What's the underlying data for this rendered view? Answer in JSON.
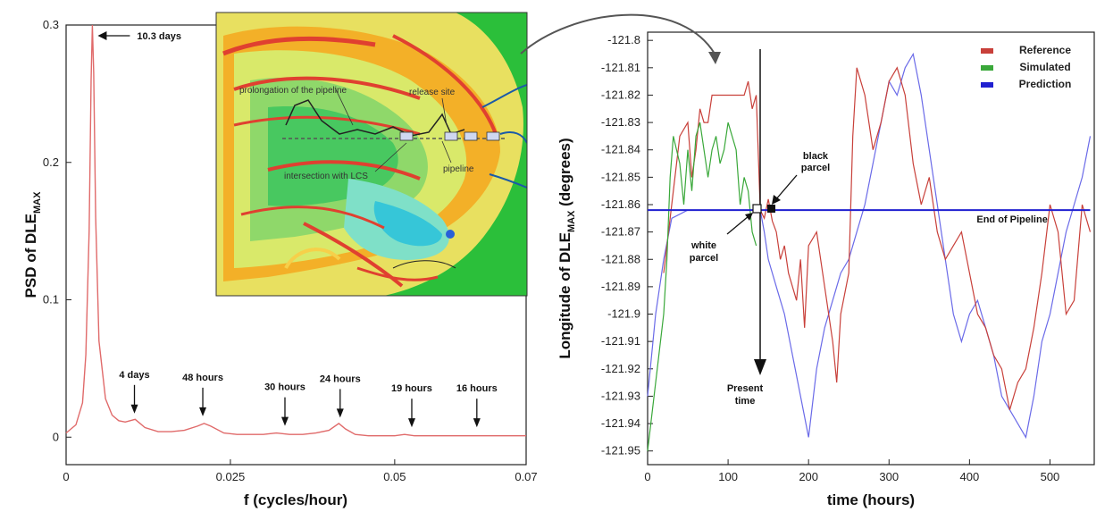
{
  "chart_data": [
    {
      "type": "line",
      "xlabel": "f (cycles/hour)",
      "ylabel_main": "PSD of DLE",
      "ylabel_sub": "MAX",
      "xlim": [
        0,
        0.07
      ],
      "ylim": [
        -0.02,
        0.3
      ],
      "xticks": [
        0,
        0.025,
        0.05,
        0.07
      ],
      "xtick_labels": [
        "0",
        "0.025",
        "0.05",
        "0.07"
      ],
      "yticks": [
        0,
        0.1,
        0.2,
        0.3
      ],
      "ytick_labels": [
        "0",
        "0.1",
        "0.2",
        "0.3"
      ],
      "series": [
        {
          "color": "#e06a6a",
          "x": [
            0,
            0.0015,
            0.0025,
            0.003,
            0.0035,
            0.0038,
            0.004,
            0.0042,
            0.0045,
            0.005,
            0.006,
            0.007,
            0.008,
            0.009,
            0.0105,
            0.012,
            0.014,
            0.016,
            0.018,
            0.02,
            0.021,
            0.022,
            0.024,
            0.026,
            0.028,
            0.03,
            0.032,
            0.034,
            0.036,
            0.038,
            0.04,
            0.0415,
            0.0425,
            0.044,
            0.046,
            0.048,
            0.05,
            0.0515,
            0.053,
            0.055,
            0.058,
            0.062,
            0.066,
            0.07
          ],
          "y": [
            0.003,
            0.009,
            0.025,
            0.06,
            0.15,
            0.26,
            0.3,
            0.265,
            0.16,
            0.07,
            0.028,
            0.016,
            0.012,
            0.011,
            0.013,
            0.007,
            0.004,
            0.004,
            0.005,
            0.008,
            0.01,
            0.008,
            0.003,
            0.002,
            0.002,
            0.002,
            0.003,
            0.002,
            0.002,
            0.003,
            0.005,
            0.01,
            0.006,
            0.002,
            0.001,
            0.001,
            0.001,
            0.002,
            0.001,
            0.001,
            0.001,
            0.001,
            0.001,
            0.001
          ]
        }
      ],
      "annotations": [
        {
          "text": "10.3 days",
          "x": 0.004,
          "y": 0.3
        },
        {
          "text": "4 days",
          "x": 0.0104,
          "y": 0.012
        },
        {
          "text": "48 hours",
          "x": 0.0208,
          "y": 0.01
        },
        {
          "text": "30 hours",
          "x": 0.0333,
          "y": 0.003
        },
        {
          "text": "24 hours",
          "x": 0.0417,
          "y": 0.009
        },
        {
          "text": "19 hours",
          "x": 0.0526,
          "y": 0.002
        },
        {
          "text": "16 hours",
          "x": 0.0625,
          "y": 0.002
        }
      ]
    },
    {
      "type": "line",
      "xlabel": "time (hours)",
      "ylabel_main": "Longitude of DLE",
      "ylabel_sub": "MAX",
      "ylabel_unit": "(degrees)",
      "xlim": [
        0,
        555
      ],
      "ylim": [
        -121.955,
        -121.797
      ],
      "xticks": [
        0,
        100,
        200,
        300,
        400,
        500
      ],
      "xtick_labels": [
        "0",
        "100",
        "200",
        "300",
        "400",
        "500"
      ],
      "yticks": [
        -121.8,
        -121.81,
        -121.82,
        -121.83,
        -121.84,
        -121.85,
        -121.86,
        -121.87,
        -121.88,
        -121.89,
        -121.9,
        -121.91,
        -121.92,
        -121.93,
        -121.94,
        -121.95
      ],
      "ytick_labels": [
        "-121.8",
        "-121.81",
        "-121.82",
        "-121.83",
        "-121.84",
        "-121.85",
        "-121.86",
        "-121.87",
        "-121.88",
        "-121.89",
        "-121.9",
        "-121.91",
        "-121.92",
        "-121.93",
        "-121.94",
        "-121.95"
      ],
      "legend": {
        "position": "top-right",
        "entries": [
          "Reference",
          "Simulated",
          "Prediction"
        ]
      },
      "series": [
        {
          "name": "Reference",
          "color": "#c8403a",
          "x": [
            140,
            145,
            150,
            155,
            160,
            165,
            170,
            175,
            180,
            185,
            190,
            195,
            200,
            210,
            220,
            230,
            235,
            240,
            250,
            255,
            260,
            270,
            280,
            290,
            300,
            310,
            320,
            330,
            340,
            350,
            360,
            370,
            380,
            390,
            400,
            410,
            420,
            430,
            440,
            450,
            460,
            470,
            480,
            490,
            500,
            510,
            520,
            530,
            540,
            550
          ],
          "y": [
            -121.862,
            -121.865,
            -121.858,
            -121.866,
            -121.87,
            -121.88,
            -121.875,
            -121.885,
            -121.89,
            -121.895,
            -121.88,
            -121.905,
            -121.875,
            -121.87,
            -121.89,
            -121.91,
            -121.925,
            -121.9,
            -121.885,
            -121.835,
            -121.81,
            -121.82,
            -121.84,
            -121.83,
            -121.815,
            -121.81,
            -121.82,
            -121.845,
            -121.86,
            -121.85,
            -121.87,
            -121.88,
            -121.875,
            -121.87,
            -121.885,
            -121.9,
            -121.905,
            -121.915,
            -121.92,
            -121.935,
            -121.925,
            -121.92,
            -121.905,
            -121.885,
            -121.86,
            -121.87,
            -121.9,
            -121.895,
            -121.86,
            -121.87
          ]
        },
        {
          "name": "Simulated",
          "color": "#3aa83a",
          "x": [
            0,
            4,
            8,
            12,
            16,
            20,
            24,
            28,
            32,
            36,
            40,
            45,
            50,
            55,
            60,
            65,
            70,
            75,
            80,
            85,
            90,
            95,
            100,
            105,
            110,
            115,
            120,
            125,
            130,
            135
          ],
          "y": [
            -121.95,
            -121.94,
            -121.93,
            -121.92,
            -121.91,
            -121.9,
            -121.88,
            -121.85,
            -121.835,
            -121.84,
            -121.845,
            -121.86,
            -121.84,
            -121.855,
            -121.835,
            -121.83,
            -121.84,
            -121.85,
            -121.84,
            -121.835,
            -121.845,
            -121.84,
            -121.83,
            -121.835,
            -121.84,
            -121.86,
            -121.85,
            -121.855,
            -121.87,
            -121.875
          ]
        },
        {
          "name": "Reference (pre-present)",
          "color": "#c8403a",
          "x": [
            20,
            30,
            40,
            50,
            55,
            60,
            65,
            70,
            75,
            80,
            90,
            100,
            110,
            120,
            125,
            130,
            135,
            140
          ],
          "y": [
            -121.885,
            -121.86,
            -121.835,
            -121.83,
            -121.85,
            -121.84,
            -121.825,
            -121.83,
            -121.83,
            -121.82,
            -121.82,
            -121.82,
            -121.82,
            -121.82,
            -121.815,
            -121.825,
            -121.82,
            -121.862
          ]
        },
        {
          "name": "Prediction",
          "color": "#6a6ae8",
          "x": [
            0,
            5,
            10,
            15,
            20,
            30,
            50,
            80,
            100,
            120,
            140,
            145,
            150,
            160,
            170,
            180,
            190,
            200,
            210,
            220,
            230,
            240,
            250,
            260,
            270,
            280,
            290,
            300,
            310,
            320,
            330,
            340,
            350,
            360,
            370,
            380,
            390,
            400,
            410,
            420,
            430,
            440,
            450,
            460,
            470,
            480,
            490,
            500,
            510,
            520,
            530,
            540,
            550
          ],
          "y": [
            -121.93,
            -121.915,
            -121.9,
            -121.89,
            -121.88,
            -121.865,
            -121.862,
            -121.862,
            -121.862,
            -121.862,
            -121.862,
            -121.87,
            -121.88,
            -121.89,
            -121.9,
            -121.915,
            -121.93,
            -121.945,
            -121.92,
            -121.905,
            -121.895,
            -121.885,
            -121.88,
            -121.87,
            -121.86,
            -121.845,
            -121.83,
            -121.815,
            -121.82,
            -121.81,
            -121.805,
            -121.82,
            -121.84,
            -121.86,
            -121.88,
            -121.9,
            -121.91,
            -121.9,
            -121.895,
            -121.905,
            -121.915,
            -121.93,
            -121.935,
            -121.94,
            -121.945,
            -121.93,
            -121.91,
            -121.9,
            -121.885,
            -121.87,
            -121.86,
            -121.85,
            -121.835
          ]
        },
        {
          "name": "End of Pipeline",
          "color": "#2020d0",
          "x": [
            0,
            550
          ],
          "y": [
            -121.862,
            -121.862
          ]
        }
      ],
      "annotations": [
        {
          "text": "End of Pipeline",
          "x": 420,
          "y": -121.862
        },
        {
          "text": "black parcel",
          "x": 150,
          "y": -121.862
        },
        {
          "text": "white parcel",
          "x": 130,
          "y": -121.862
        },
        {
          "text": "Present time",
          "x": 135,
          "y": -121.92
        }
      ]
    }
  ],
  "inset_map": {
    "labels": [
      "prolongation of the pipeline",
      "release site",
      "intersection with LCS",
      "pipeline"
    ]
  },
  "markers": {
    "black_parcel_line1": "black",
    "black_parcel_line2": "parcel",
    "white_parcel_line1": "white",
    "white_parcel_line2": "parcel",
    "present_line1": "Present",
    "present_line2": "time"
  }
}
